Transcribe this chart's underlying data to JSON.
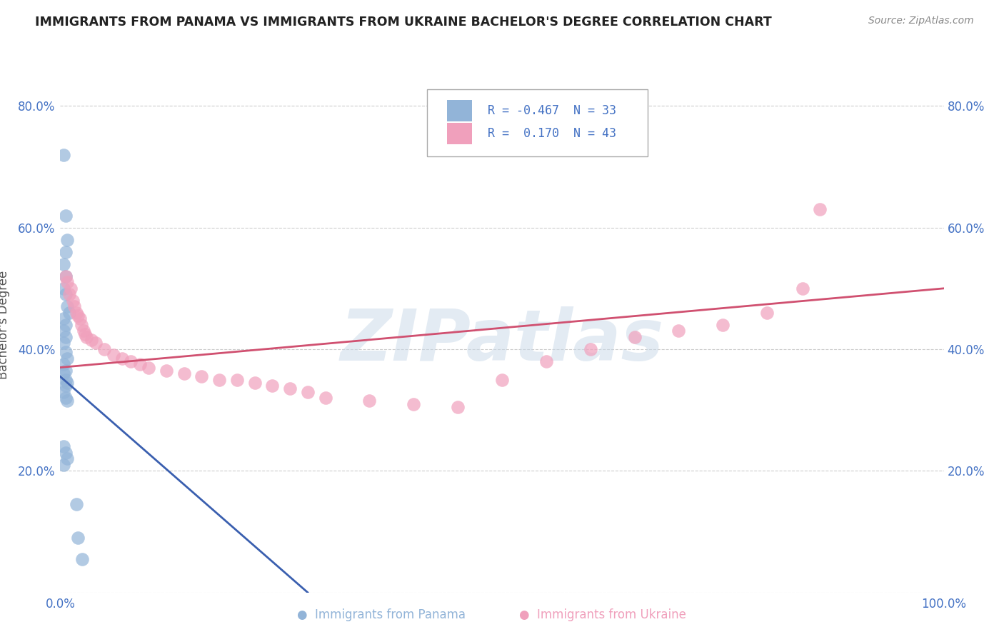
{
  "title": "IMMIGRANTS FROM PANAMA VS IMMIGRANTS FROM UKRAINE BACHELOR'S DEGREE CORRELATION CHART",
  "source": "Source: ZipAtlas.com",
  "ylabel": "Bachelor's Degree",
  "watermark": "ZIPatlas",
  "legend_r_panama": "-0.467",
  "legend_n_panama": "33",
  "legend_r_ukraine": "0.170",
  "legend_n_ukraine": "43",
  "panama_color": "#92b4d8",
  "ukraine_color": "#f0a0bc",
  "panama_line_color": "#3a5faf",
  "ukraine_line_color": "#d05070",
  "xlim": [
    0.0,
    1.0
  ],
  "ylim": [
    0.0,
    0.88
  ],
  "panama_x": [
    0.004,
    0.006,
    0.008,
    0.006,
    0.004,
    0.006,
    0.004,
    0.006,
    0.008,
    0.01,
    0.004,
    0.006,
    0.004,
    0.006,
    0.004,
    0.006,
    0.008,
    0.004,
    0.006,
    0.004,
    0.006,
    0.008,
    0.006,
    0.004,
    0.006,
    0.008,
    0.004,
    0.006,
    0.008,
    0.004,
    0.018,
    0.02,
    0.025
  ],
  "panama_y": [
    0.72,
    0.62,
    0.58,
    0.56,
    0.54,
    0.52,
    0.5,
    0.49,
    0.47,
    0.46,
    0.45,
    0.44,
    0.43,
    0.42,
    0.41,
    0.395,
    0.385,
    0.375,
    0.365,
    0.36,
    0.35,
    0.345,
    0.34,
    0.33,
    0.32,
    0.315,
    0.24,
    0.23,
    0.22,
    0.21,
    0.145,
    0.09,
    0.055
  ],
  "ukraine_x": [
    0.006,
    0.008,
    0.01,
    0.012,
    0.014,
    0.016,
    0.018,
    0.02,
    0.022,
    0.024,
    0.026,
    0.028,
    0.03,
    0.035,
    0.04,
    0.05,
    0.06,
    0.07,
    0.08,
    0.09,
    0.1,
    0.12,
    0.14,
    0.16,
    0.18,
    0.2,
    0.22,
    0.24,
    0.26,
    0.28,
    0.3,
    0.35,
    0.4,
    0.45,
    0.5,
    0.55,
    0.6,
    0.65,
    0.7,
    0.75,
    0.8,
    0.84,
    0.86
  ],
  "ukraine_y": [
    0.52,
    0.51,
    0.49,
    0.5,
    0.48,
    0.47,
    0.46,
    0.455,
    0.45,
    0.44,
    0.43,
    0.425,
    0.42,
    0.415,
    0.41,
    0.4,
    0.39,
    0.385,
    0.38,
    0.375,
    0.37,
    0.365,
    0.36,
    0.355,
    0.35,
    0.35,
    0.345,
    0.34,
    0.335,
    0.33,
    0.32,
    0.315,
    0.31,
    0.305,
    0.35,
    0.38,
    0.4,
    0.42,
    0.43,
    0.44,
    0.46,
    0.5,
    0.63
  ],
  "yticks": [
    0.0,
    0.2,
    0.4,
    0.6,
    0.8
  ],
  "ytick_labels": [
    "",
    "20.0%",
    "40.0%",
    "60.0%",
    "80.0%"
  ],
  "xticks": [
    0.0,
    0.25,
    0.5,
    0.75,
    1.0
  ],
  "xtick_labels": [
    "0.0%",
    "",
    "",
    "",
    "100.0%"
  ],
  "grid_color": "#c0c0c0",
  "background_color": "#ffffff",
  "title_color": "#222222",
  "axis_label_color": "#555555",
  "panama_line_x0": 0.0,
  "panama_line_x1": 0.28,
  "panama_line_y0": 0.355,
  "panama_line_y1": 0.0,
  "ukraine_line_x0": 0.0,
  "ukraine_line_x1": 1.0,
  "ukraine_line_y0": 0.37,
  "ukraine_line_y1": 0.5
}
